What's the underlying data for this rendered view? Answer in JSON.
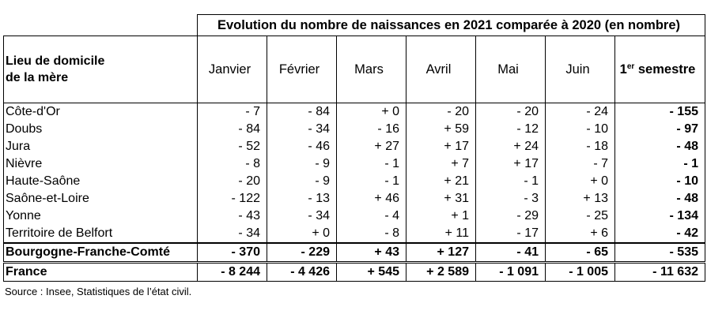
{
  "header": {
    "title": "Evolution du nombre de naissances en 2021 comparée à 2020 (en nombre)",
    "lieu_line1": "Lieu de domicile",
    "lieu_line2": "de la mère",
    "months": [
      "Janvier",
      "Février",
      "Mars",
      "Avril",
      "Mai",
      "Juin"
    ],
    "semester_sup": "er",
    "semester_prefix": "1",
    "semester_suffix": " semestre"
  },
  "rows": [
    {
      "name": "Côte-d'Or",
      "values": [
        "- 7",
        "- 84",
        "+ 0",
        "- 20",
        "- 20",
        "- 24"
      ],
      "total": "- 155"
    },
    {
      "name": "Doubs",
      "values": [
        "- 84",
        "- 34",
        "- 16",
        "+ 59",
        "- 12",
        "- 10"
      ],
      "total": "- 97"
    },
    {
      "name": "Jura",
      "values": [
        "- 52",
        "- 46",
        "+ 27",
        "+ 17",
        "+ 24",
        "- 18"
      ],
      "total": "- 48"
    },
    {
      "name": "Nièvre",
      "values": [
        "- 8",
        "- 9",
        "- 1",
        "+ 7",
        "+ 17",
        "- 7"
      ],
      "total": "- 1"
    },
    {
      "name": "Haute-Saône",
      "values": [
        "- 20",
        "- 9",
        "- 1",
        "+ 21",
        "- 1",
        "+ 0"
      ],
      "total": "- 10"
    },
    {
      "name": "Saône-et-Loire",
      "values": [
        "- 122",
        "- 13",
        "+ 46",
        "+ 31",
        "- 3",
        "+ 13"
      ],
      "total": "- 48"
    },
    {
      "name": "Yonne",
      "values": [
        "- 43",
        "- 34",
        "- 4",
        "+ 1",
        "- 29",
        "- 25"
      ],
      "total": "- 134"
    },
    {
      "name": "Territoire de Belfort",
      "values": [
        "- 34",
        "+ 0",
        "- 8",
        "+ 11",
        "- 17",
        "+ 6"
      ],
      "total": "- 42"
    }
  ],
  "region": {
    "name": "Bourgogne-Franche-Comté",
    "values": [
      "- 370",
      "- 229",
      "+ 43",
      "+ 127",
      "- 41",
      "- 65"
    ],
    "total": "- 535"
  },
  "france": {
    "name": "France",
    "values": [
      "- 8 244",
      "- 4 426",
      "+ 545",
      "+ 2 589",
      "- 1 091",
      "- 1 005"
    ],
    "total": "- 11 632"
  },
  "source": "Source : Insee, Statistiques de l’état civil."
}
